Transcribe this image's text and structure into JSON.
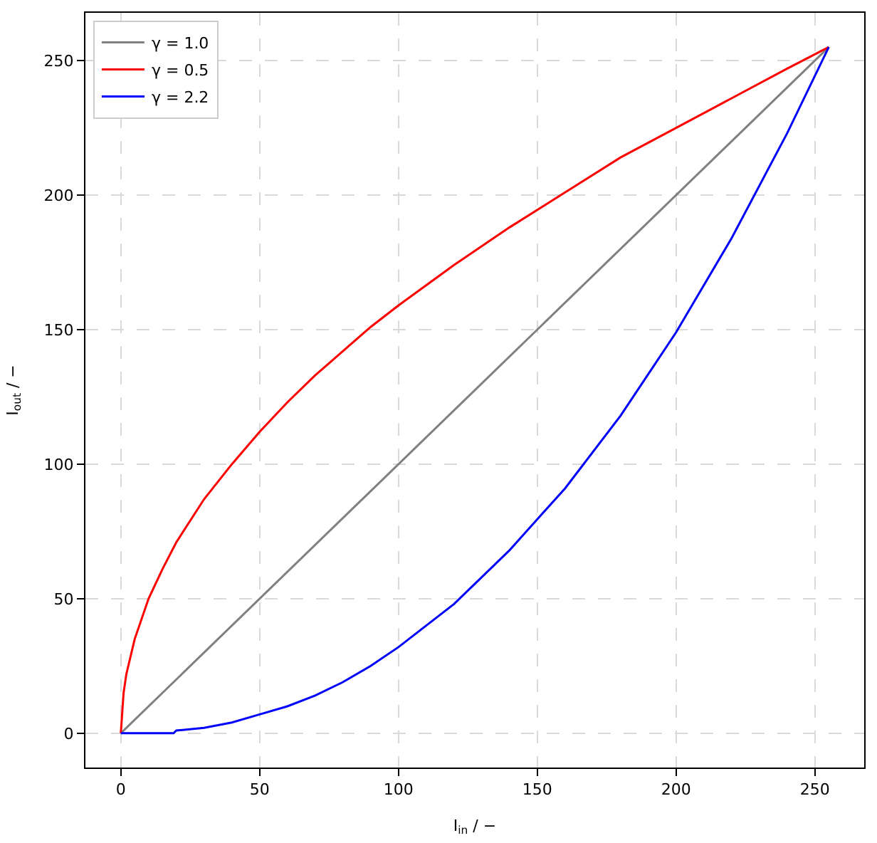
{
  "chart_data": {
    "type": "line",
    "xlabel": "I$_{in}$ / −",
    "ylabel": "I$_{out}$ / −",
    "xlim": [
      -12.75,
      267.75
    ],
    "ylim": [
      -12.75,
      267.75
    ],
    "xticks": [
      0,
      50,
      100,
      150,
      200,
      250
    ],
    "yticks": [
      0,
      50,
      100,
      150,
      200,
      250
    ],
    "grid": true,
    "legend": "top left",
    "marker": "none",
    "line_style": "solid",
    "series": [
      {
        "name": "γ = 1.0",
        "color": "#808080",
        "x": [
          0,
          255
        ],
        "values": [
          0,
          255
        ]
      },
      {
        "name": "γ = 0.5",
        "color": "#ff0000",
        "x": [
          0,
          1,
          2,
          5,
          10,
          15,
          20,
          30,
          40,
          50,
          60,
          70,
          80,
          90,
          100,
          120,
          140,
          160,
          180,
          200,
          220,
          240,
          255
        ],
        "values": [
          0,
          15,
          22,
          35,
          50,
          61,
          71,
          87,
          100,
          112,
          123,
          133,
          142,
          151,
          159,
          174,
          188,
          201,
          214,
          225,
          236,
          247,
          255
        ]
      },
      {
        "name": "γ = 2.2",
        "color": "#0000ff",
        "x": [
          0,
          10,
          19,
          20,
          30,
          40,
          50,
          60,
          70,
          80,
          90,
          100,
          120,
          140,
          160,
          180,
          200,
          220,
          240,
          255
        ],
        "values": [
          0,
          0,
          0,
          1,
          2,
          4,
          7,
          10,
          14,
          19,
          25,
          32,
          48,
          68,
          91,
          118,
          149,
          184,
          223,
          255
        ]
      }
    ]
  }
}
